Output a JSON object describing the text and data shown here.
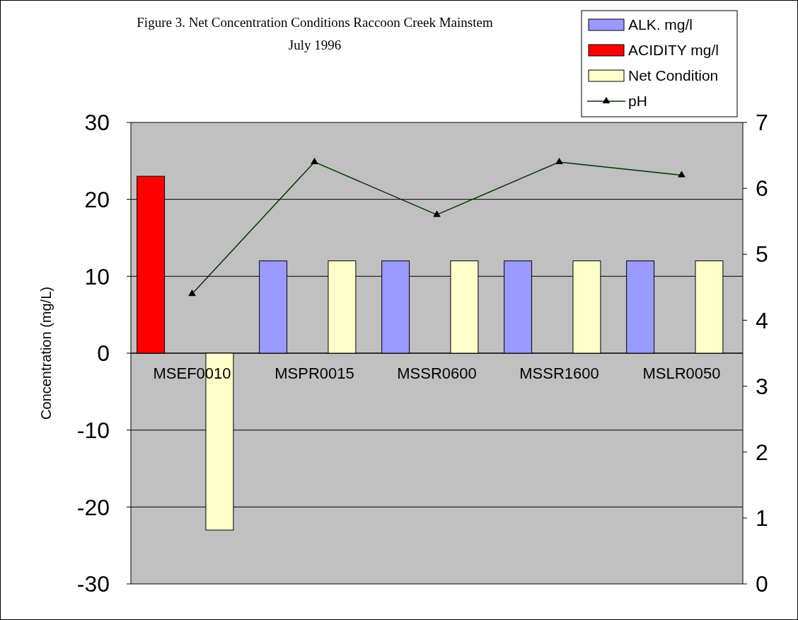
{
  "chart_data": {
    "type": "bar",
    "title": "Figure 3.  Net Concentration Conditions Raccoon Creek Mainstem",
    "subtitle": "July 1996",
    "ylabel": "Concentration (mg/L)",
    "categories": [
      "MSEF0010",
      "MSPR0015",
      "MSSR0600",
      "MSSR1600",
      "MSLR0050"
    ],
    "series": [
      {
        "name": "ALK. mg/l",
        "color": "#9999ff",
        "values": [
          0,
          12,
          12,
          12,
          12
        ]
      },
      {
        "name": "ACIDITY mg/l",
        "color": "#ff0000",
        "values": [
          23,
          0,
          0,
          0,
          0
        ]
      },
      {
        "name": "Net Condition",
        "color": "#ffffcc",
        "values": [
          -23,
          12,
          12,
          12,
          12
        ]
      },
      {
        "name": "pH",
        "type": "line",
        "axis": "y2",
        "color": "#003300",
        "values": [
          4.4,
          6.4,
          5.6,
          6.4,
          6.2
        ]
      }
    ],
    "ylim": [
      -30,
      30
    ],
    "yticks": [
      -30,
      -20,
      -10,
      0,
      10,
      20,
      30
    ],
    "y2lim": [
      0,
      7
    ],
    "y2ticks": [
      0,
      1,
      2,
      3,
      4,
      5,
      6,
      7
    ],
    "grid": "y",
    "legend": "top right",
    "marker": "triangle",
    "line_style": "solid"
  }
}
